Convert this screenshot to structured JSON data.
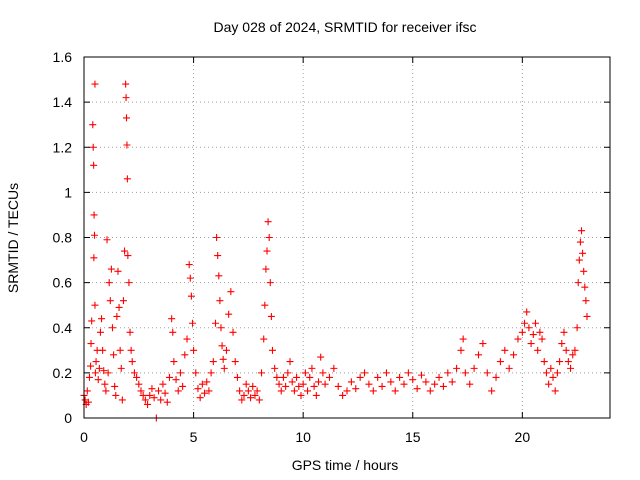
{
  "chart_data": {
    "type": "scatter",
    "title": "Day 028 of 2024, SRMTID for receiver ifsc",
    "xlabel": "GPS time / hours",
    "ylabel": "SRMTID / TECUs",
    "xlim": [
      0,
      24
    ],
    "ylim": [
      0,
      1.6
    ],
    "xticks": [
      0,
      5,
      10,
      15,
      20
    ],
    "xtick_labels": [
      "0",
      "5",
      "10",
      "15",
      "20"
    ],
    "yticks": [
      0,
      0.2,
      0.4,
      0.6,
      0.8,
      1.0,
      1.2,
      1.4,
      1.6
    ],
    "ytick_labels": [
      "0",
      "0.2",
      "0.4",
      "0.6",
      "0.8",
      "1",
      "1.2",
      "1.4",
      "1.6"
    ],
    "grid": true,
    "marker": "+",
    "series": [
      {
        "name": "SRMTID",
        "color": "#ff0000",
        "points": [
          [
            0.0,
            0.1
          ],
          [
            0.05,
            0.08
          ],
          [
            0.1,
            0.06
          ],
          [
            0.15,
            0.12
          ],
          [
            0.2,
            0.07
          ],
          [
            0.25,
            0.18
          ],
          [
            0.3,
            0.23
          ],
          [
            0.32,
            0.33
          ],
          [
            0.35,
            0.43
          ],
          [
            0.4,
            1.3
          ],
          [
            0.42,
            1.2
          ],
          [
            0.44,
            1.12
          ],
          [
            0.46,
            0.9
          ],
          [
            0.48,
            0.81
          ],
          [
            0.45,
            0.71
          ],
          [
            0.5,
            1.48
          ],
          [
            0.5,
            0.5
          ],
          [
            0.52,
            0.2
          ],
          [
            0.55,
            0.25
          ],
          [
            0.6,
            0.3
          ],
          [
            0.65,
            0.17
          ],
          [
            0.7,
            0.22
          ],
          [
            0.75,
            0.38
          ],
          [
            0.8,
            0.44
          ],
          [
            0.85,
            0.3
          ],
          [
            0.9,
            0.21
          ],
          [
            0.95,
            0.15
          ],
          [
            1.0,
            0.12
          ],
          [
            1.05,
            0.79
          ],
          [
            1.1,
            0.2
          ],
          [
            1.15,
            0.6
          ],
          [
            1.2,
            0.52
          ],
          [
            1.25,
            0.66
          ],
          [
            1.3,
            0.4
          ],
          [
            1.35,
            0.28
          ],
          [
            1.4,
            0.14
          ],
          [
            1.45,
            0.1
          ],
          [
            1.5,
            0.45
          ],
          [
            1.55,
            0.65
          ],
          [
            1.6,
            0.49
          ],
          [
            1.65,
            0.3
          ],
          [
            1.7,
            0.22
          ],
          [
            1.75,
            0.08
          ],
          [
            1.8,
            0.52
          ],
          [
            1.85,
            0.74
          ],
          [
            1.9,
            1.48
          ],
          [
            1.92,
            1.42
          ],
          [
            1.94,
            1.33
          ],
          [
            1.96,
            1.21
          ],
          [
            1.98,
            1.06
          ],
          [
            2.0,
            0.72
          ],
          [
            2.05,
            0.6
          ],
          [
            2.1,
            0.38
          ],
          [
            2.15,
            0.3
          ],
          [
            2.2,
            0.25
          ],
          [
            2.3,
            0.2
          ],
          [
            2.4,
            0.18
          ],
          [
            2.5,
            0.15
          ],
          [
            2.6,
            0.12
          ],
          [
            2.7,
            0.1
          ],
          [
            2.8,
            0.08
          ],
          [
            2.9,
            0.06
          ],
          [
            3.0,
            0.1
          ],
          [
            3.1,
            0.13
          ],
          [
            3.2,
            0.09
          ],
          [
            3.3,
            0.0
          ],
          [
            3.4,
            0.12
          ],
          [
            3.5,
            0.08
          ],
          [
            3.6,
            0.15
          ],
          [
            3.7,
            0.11
          ],
          [
            3.8,
            0.07
          ],
          [
            3.9,
            0.18
          ],
          [
            4.0,
            0.44
          ],
          [
            4.05,
            0.38
          ],
          [
            4.1,
            0.25
          ],
          [
            4.2,
            0.17
          ],
          [
            4.3,
            0.12
          ],
          [
            4.4,
            0.2
          ],
          [
            4.5,
            0.14
          ],
          [
            4.6,
            0.28
          ],
          [
            4.7,
            0.35
          ],
          [
            4.8,
            0.68
          ],
          [
            4.85,
            0.62
          ],
          [
            4.9,
            0.54
          ],
          [
            4.95,
            0.42
          ],
          [
            5.0,
            0.3
          ],
          [
            5.1,
            0.2
          ],
          [
            5.2,
            0.13
          ],
          [
            5.3,
            0.09
          ],
          [
            5.4,
            0.15
          ],
          [
            5.5,
            0.11
          ],
          [
            5.6,
            0.16
          ],
          [
            5.7,
            0.12
          ],
          [
            5.8,
            0.2
          ],
          [
            5.9,
            0.25
          ],
          [
            6.0,
            0.42
          ],
          [
            6.05,
            0.8
          ],
          [
            6.1,
            0.72
          ],
          [
            6.15,
            0.63
          ],
          [
            6.2,
            0.52
          ],
          [
            6.25,
            0.4
          ],
          [
            6.3,
            0.32
          ],
          [
            6.35,
            0.26
          ],
          [
            6.4,
            0.22
          ],
          [
            6.5,
            0.3
          ],
          [
            6.6,
            0.46
          ],
          [
            6.7,
            0.56
          ],
          [
            6.8,
            0.38
          ],
          [
            6.9,
            0.25
          ],
          [
            7.0,
            0.18
          ],
          [
            7.1,
            0.12
          ],
          [
            7.2,
            0.08
          ],
          [
            7.3,
            0.1
          ],
          [
            7.4,
            0.15
          ],
          [
            7.5,
            0.12
          ],
          [
            7.6,
            0.09
          ],
          [
            7.7,
            0.14
          ],
          [
            7.8,
            0.1
          ],
          [
            7.9,
            0.12
          ],
          [
            8.0,
            0.08
          ],
          [
            8.1,
            0.2
          ],
          [
            8.2,
            0.35
          ],
          [
            8.25,
            0.5
          ],
          [
            8.3,
            0.66
          ],
          [
            8.35,
            0.74
          ],
          [
            8.4,
            0.87
          ],
          [
            8.45,
            0.8
          ],
          [
            8.5,
            0.6
          ],
          [
            8.55,
            0.45
          ],
          [
            8.6,
            0.3
          ],
          [
            8.7,
            0.22
          ],
          [
            8.8,
            0.18
          ],
          [
            8.9,
            0.15
          ],
          [
            9.0,
            0.12
          ],
          [
            9.1,
            0.18
          ],
          [
            9.2,
            0.14
          ],
          [
            9.3,
            0.2
          ],
          [
            9.4,
            0.25
          ],
          [
            9.5,
            0.16
          ],
          [
            9.6,
            0.12
          ],
          [
            9.7,
            0.18
          ],
          [
            9.8,
            0.14
          ],
          [
            9.9,
            0.1
          ],
          [
            10.0,
            0.15
          ],
          [
            10.1,
            0.2
          ],
          [
            10.2,
            0.12
          ],
          [
            10.3,
            0.18
          ],
          [
            10.4,
            0.22
          ],
          [
            10.5,
            0.14
          ],
          [
            10.6,
            0.1
          ],
          [
            10.7,
            0.16
          ],
          [
            10.8,
            0.27
          ],
          [
            10.9,
            0.2
          ],
          [
            11.0,
            0.15
          ],
          [
            11.2,
            0.18
          ],
          [
            11.4,
            0.22
          ],
          [
            11.6,
            0.14
          ],
          [
            11.8,
            0.1
          ],
          [
            12.0,
            0.12
          ],
          [
            12.2,
            0.16
          ],
          [
            12.4,
            0.13
          ],
          [
            12.6,
            0.18
          ],
          [
            12.8,
            0.2
          ],
          [
            13.0,
            0.15
          ],
          [
            13.2,
            0.12
          ],
          [
            13.4,
            0.18
          ],
          [
            13.6,
            0.14
          ],
          [
            13.8,
            0.2
          ],
          [
            14.0,
            0.16
          ],
          [
            14.2,
            0.12
          ],
          [
            14.4,
            0.18
          ],
          [
            14.6,
            0.15
          ],
          [
            14.8,
            0.2
          ],
          [
            15.0,
            0.17
          ],
          [
            15.2,
            0.13
          ],
          [
            15.4,
            0.19
          ],
          [
            15.6,
            0.16
          ],
          [
            15.8,
            0.12
          ],
          [
            16.0,
            0.15
          ],
          [
            16.2,
            0.18
          ],
          [
            16.4,
            0.14
          ],
          [
            16.6,
            0.2
          ],
          [
            16.8,
            0.16
          ],
          [
            17.0,
            0.22
          ],
          [
            17.2,
            0.3
          ],
          [
            17.3,
            0.35
          ],
          [
            17.4,
            0.2
          ],
          [
            17.6,
            0.15
          ],
          [
            17.8,
            0.22
          ],
          [
            18.0,
            0.28
          ],
          [
            18.2,
            0.33
          ],
          [
            18.4,
            0.2
          ],
          [
            18.6,
            0.12
          ],
          [
            18.8,
            0.18
          ],
          [
            19.0,
            0.25
          ],
          [
            19.2,
            0.3
          ],
          [
            19.4,
            0.22
          ],
          [
            19.6,
            0.28
          ],
          [
            19.8,
            0.35
          ],
          [
            20.0,
            0.38
          ],
          [
            20.1,
            0.42
          ],
          [
            20.2,
            0.47
          ],
          [
            20.3,
            0.4
          ],
          [
            20.4,
            0.33
          ],
          [
            20.5,
            0.37
          ],
          [
            20.6,
            0.42
          ],
          [
            20.7,
            0.3
          ],
          [
            20.8,
            0.38
          ],
          [
            20.9,
            0.35
          ],
          [
            21.0,
            0.25
          ],
          [
            21.1,
            0.2
          ],
          [
            21.2,
            0.15
          ],
          [
            21.3,
            0.22
          ],
          [
            21.4,
            0.18
          ],
          [
            21.5,
            0.12
          ],
          [
            21.6,
            0.2
          ],
          [
            21.7,
            0.25
          ],
          [
            21.8,
            0.33
          ],
          [
            21.9,
            0.38
          ],
          [
            22.0,
            0.3
          ],
          [
            22.1,
            0.25
          ],
          [
            22.2,
            0.22
          ],
          [
            22.3,
            0.28
          ],
          [
            22.4,
            0.3
          ],
          [
            22.5,
            0.4
          ],
          [
            22.55,
            0.6
          ],
          [
            22.6,
            0.7
          ],
          [
            22.65,
            0.78
          ],
          [
            22.7,
            0.83
          ],
          [
            22.75,
            0.73
          ],
          [
            22.8,
            0.65
          ],
          [
            22.85,
            0.58
          ],
          [
            22.9,
            0.52
          ],
          [
            22.95,
            0.45
          ]
        ]
      }
    ]
  }
}
